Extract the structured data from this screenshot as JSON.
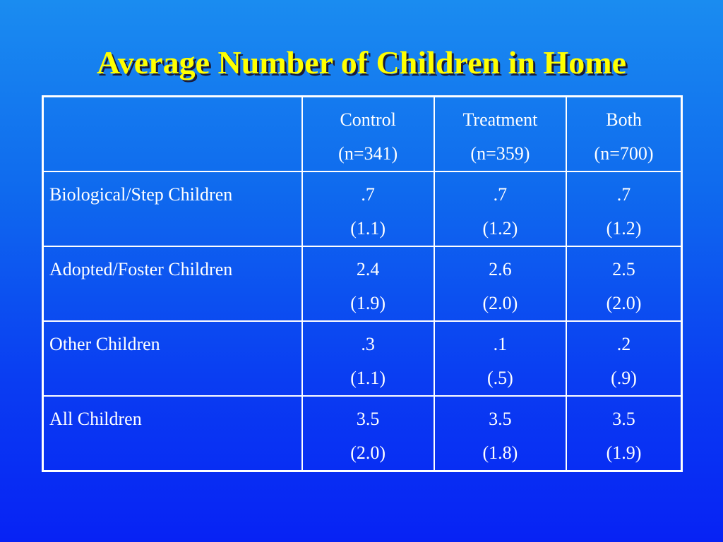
{
  "slide": {
    "title": "Average Number of Children in Home"
  },
  "table": {
    "header": {
      "corner": "",
      "columns": [
        {
          "name": "Control",
          "n": "(n=341)"
        },
        {
          "name": "Treatment",
          "n": "(n=359)"
        },
        {
          "name": "Both",
          "n": "(n=700)"
        }
      ]
    },
    "rows": [
      {
        "label": "Biological/Step Children",
        "cells": [
          {
            "mean": ".7",
            "sd": "(1.1)"
          },
          {
            "mean": ".7",
            "sd": "(1.2)"
          },
          {
            "mean": ".7",
            "sd": "(1.2)"
          }
        ]
      },
      {
        "label": "Adopted/Foster Children",
        "cells": [
          {
            "mean": "2.4",
            "sd": "(1.9)"
          },
          {
            "mean": "2.6",
            "sd": "(2.0)"
          },
          {
            "mean": "2.5",
            "sd": "(2.0)"
          }
        ]
      },
      {
        "label": "Other Children",
        "cells": [
          {
            "mean": ".3",
            "sd": "(1.1)"
          },
          {
            "mean": ".1",
            "sd": "(.5)"
          },
          {
            "mean": ".2",
            "sd": "(.9)"
          }
        ]
      },
      {
        "label": "All Children",
        "cells": [
          {
            "mean": "3.5",
            "sd": "(2.0)"
          },
          {
            "mean": "3.5",
            "sd": "(1.8)"
          },
          {
            "mean": "3.5",
            "sd": "(1.9)"
          }
        ]
      }
    ]
  },
  "colors": {
    "title": "#ffff00",
    "text": "#ffffff",
    "background_top": "#1a8cf0",
    "background_bottom": "#0722f4"
  }
}
